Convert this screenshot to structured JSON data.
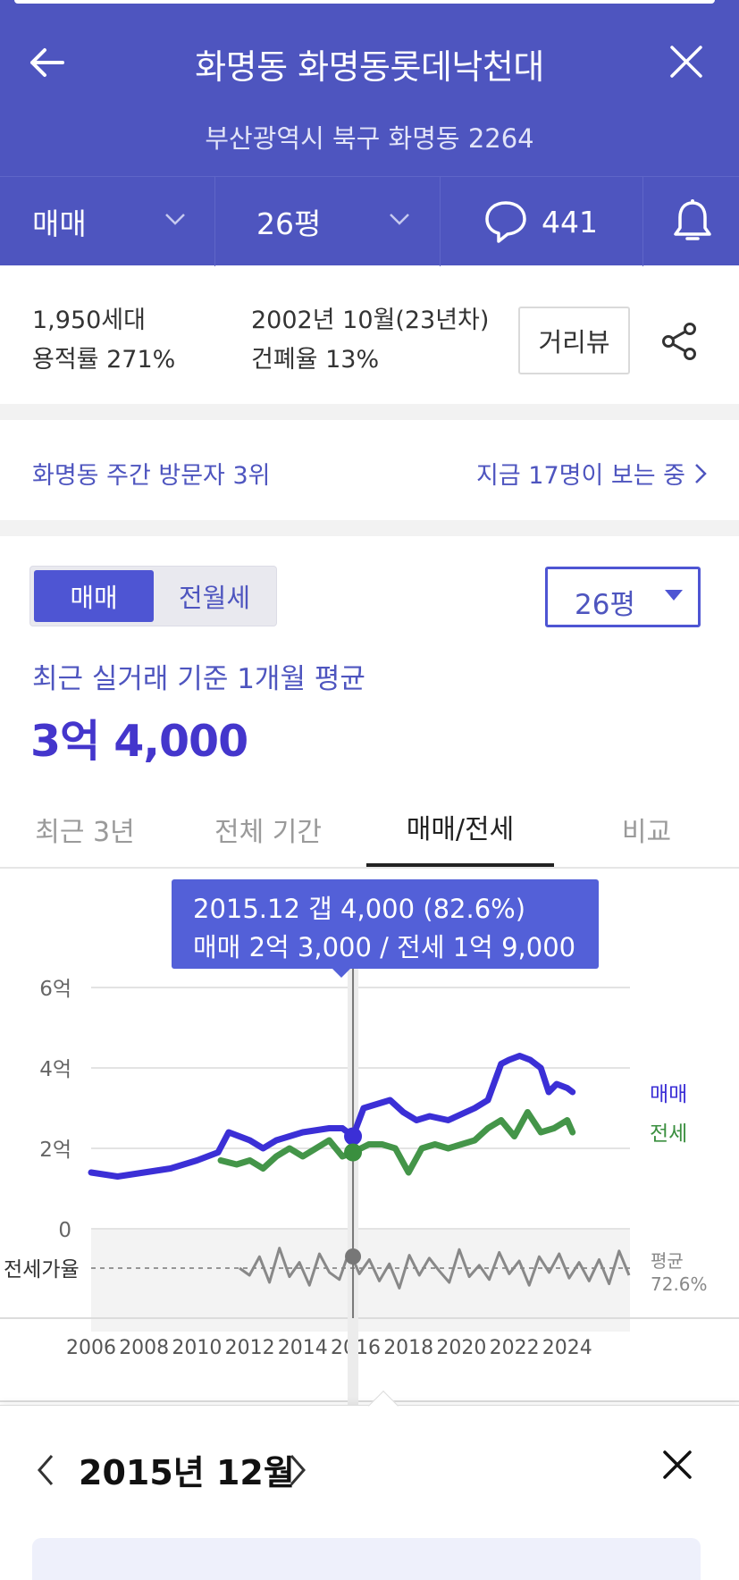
{
  "header": {
    "title": "화명동 화명동롯데낙천대",
    "address": "부산광역시 북구 화명동 2264",
    "back_icon": "arrow-left-icon",
    "close_icon": "close-icon"
  },
  "filters": {
    "deal_type": "매매",
    "size": "26평",
    "comment_count": "441",
    "bell_icon": "bell-icon"
  },
  "info": {
    "households": "1,950세대",
    "floor_area_ratio": "용적률 271%",
    "built": "2002년 10월(23년차)",
    "coverage_ratio": "건폐율 13%",
    "road_view_label": "거리뷰"
  },
  "visitors": {
    "rank_text": "화명동 주간 방문자 3위",
    "live_text": "지금 17명이 보는 중"
  },
  "price": {
    "toggle_sale": "매매",
    "toggle_rent": "전월세",
    "size_select": "26평",
    "avg_label": "최근 실거래 기준 1개월 평균",
    "avg_value": "3억 4,000"
  },
  "tabs": [
    "최근 3년",
    "전체 기간",
    "매매/전세",
    "비교"
  ],
  "tooltip": {
    "line1": "2015.12  갭 4,000 (82.6%)",
    "line2": "매매 2억 3,000 / 전세 1억 9,000"
  },
  "chart_data": {
    "type": "line",
    "x_unit": "year",
    "xlim": [
      2006,
      2025
    ],
    "x_ticks": [
      "2006",
      "2008",
      "2010",
      "2012",
      "2014",
      "2016",
      "2018",
      "2020",
      "2022",
      "2024"
    ],
    "y_ticks": [
      "0",
      "2억",
      "4억",
      "6억"
    ],
    "ylim": [
      0,
      6
    ],
    "y_unit": "억",
    "series": [
      {
        "name": "매매",
        "color": "#3b2fd6",
        "x": [
          2006.0,
          2007.0,
          2008.0,
          2009.0,
          2010.0,
          2010.8,
          2011.2,
          2012.0,
          2012.5,
          2013.0,
          2014.0,
          2015.0,
          2015.5,
          2015.9,
          2016.3,
          2016.8,
          2017.3,
          2017.8,
          2018.3,
          2018.8,
          2019.5,
          2020.5,
          2021.0,
          2021.5,
          2021.8,
          2022.2,
          2022.6,
          2023.0,
          2023.3,
          2023.6,
          2024.0,
          2024.2
        ],
        "y": [
          1.4,
          1.3,
          1.4,
          1.5,
          1.7,
          1.9,
          2.4,
          2.2,
          2.0,
          2.2,
          2.4,
          2.5,
          2.5,
          2.3,
          3.0,
          3.1,
          3.2,
          2.9,
          2.7,
          2.8,
          2.7,
          3.0,
          3.2,
          4.1,
          4.2,
          4.3,
          4.2,
          4.0,
          3.4,
          3.6,
          3.5,
          3.4
        ]
      },
      {
        "name": "전세",
        "color": "#3a8f3f",
        "x": [
          2010.9,
          2011.5,
          2012.0,
          2012.5,
          2013.0,
          2013.5,
          2014.0,
          2014.5,
          2015.0,
          2015.5,
          2015.9,
          2016.5,
          2017.0,
          2017.5,
          2018.0,
          2018.5,
          2019.0,
          2019.5,
          2020.0,
          2020.5,
          2021.0,
          2021.5,
          2022.0,
          2022.5,
          2023.0,
          2023.5,
          2024.0,
          2024.2
        ],
        "y": [
          1.7,
          1.6,
          1.7,
          1.5,
          1.8,
          2.0,
          1.8,
          2.0,
          2.2,
          1.8,
          1.9,
          2.1,
          2.1,
          2.0,
          1.4,
          2.0,
          2.1,
          2.0,
          2.1,
          2.2,
          2.5,
          2.7,
          2.3,
          2.9,
          2.4,
          2.5,
          2.7,
          2.4
        ]
      }
    ],
    "legend": [
      "매매",
      "전세"
    ],
    "legend_position": "right",
    "ratio_panel": {
      "label": "전세가율",
      "avg_label": "평균",
      "avg_value": "72.6%"
    },
    "selected_x": 2015.9,
    "selected_values": {
      "매매": 2.3,
      "전세": 1.9
    }
  },
  "sheet": {
    "month": "2015년 12월"
  }
}
